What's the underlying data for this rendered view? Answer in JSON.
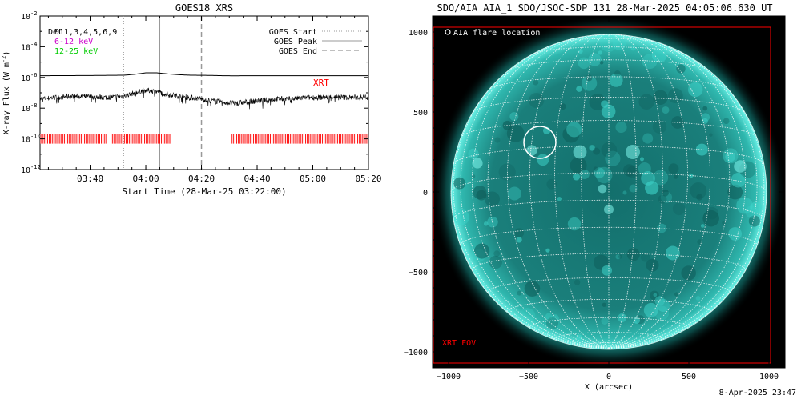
{
  "left_panel": {
    "title": "GOES18 XRS",
    "y_axis_label": "X-ray Flux (W m",
    "y_axis_label_sup": "-2",
    "y_axis_label_end": ")",
    "x_axis_label": "Start Time (28-Mar-25 03:22:00)",
    "det_label": "Det",
    "channels_label": "D11,3,4,5,6,9",
    "band_low": "6-12 keV",
    "band_high": "12-25 keV",
    "band_low_color": "#cc00cc",
    "band_high_color": "#00cc00",
    "xrt_label": "XRT",
    "legend": [
      {
        "label": "GOES Start",
        "style": "dotted"
      },
      {
        "label": "GOES Peak",
        "style": "solid"
      },
      {
        "label": "GOES End",
        "style": "dashed"
      }
    ]
  },
  "right_panel": {
    "title": "SDO/AIA AIA_1 SDO/JSOC-SDP 131 28-Mar-2025 04:05:06.630 UT",
    "legend_label": "AIA flare location",
    "fov_label": "XRT FOV",
    "x_axis_label": "X (arcsec)"
  },
  "timestamp": "8-Apr-2025 23:47",
  "colors": {
    "xrt_marks": "#ff0000",
    "sun_disk": "#1a8a86",
    "sun_bright": "#4ff0e6",
    "fov_box": "#ff0000"
  },
  "chart_data": [
    {
      "type": "line",
      "title": "GOES18 XRS",
      "xlabel": "Start Time (28-Mar-25 03:22:00)",
      "ylabel": "X-ray Flux (W m^-2)",
      "y_scale": "log",
      "x_unit": "minutes after 03:22:00",
      "xlim": [
        0,
        118
      ],
      "ylim": [
        1e-12,
        0.01
      ],
      "x_ticks": [
        18,
        38,
        58,
        78,
        98,
        118
      ],
      "x_tick_labels": [
        "03:40",
        "04:00",
        "04:20",
        "04:40",
        "05:00",
        "05:20"
      ],
      "y_ticks": [
        1e-12,
        1e-10,
        1e-08,
        1e-06,
        0.0001,
        0.01
      ],
      "y_tick_labels": [
        [
          "10",
          "-12"
        ],
        [
          "10",
          "-10"
        ],
        [
          "10",
          "-8"
        ],
        [
          "10",
          "-6"
        ],
        [
          "10",
          "-4"
        ],
        [
          "10",
          "-2"
        ]
      ],
      "legend_position": "top-right",
      "grid": false,
      "series": [
        {
          "name": "6-12 keV",
          "x": [
            0,
            10,
            20,
            30,
            34,
            38,
            42,
            46,
            50,
            54,
            58,
            62,
            66,
            70,
            74,
            78,
            82,
            86,
            90,
            94,
            98,
            102,
            106,
            110,
            114,
            118
          ],
          "y": [
            1.3e-06,
            1.32e-06,
            1.35e-06,
            1.4e-06,
            1.6e-06,
            2e-06,
            2e-06,
            1.7e-06,
            1.5e-06,
            1.4e-06,
            1.38e-06,
            1.35e-06,
            1.3e-06,
            1.28e-06,
            1.3e-06,
            1.3e-06,
            1.3e-06,
            1.3e-06,
            1.3e-06,
            1.3e-06,
            1.3e-06,
            1.3e-06,
            1.3e-06,
            1.3e-06,
            1.3e-06,
            1.3e-06
          ]
        },
        {
          "name": "12-25 keV",
          "x": [
            0,
            6,
            12,
            18,
            24,
            30,
            34,
            38,
            42,
            46,
            50,
            54,
            58,
            62,
            66,
            70,
            74,
            78,
            82,
            86,
            90,
            94,
            98,
            102,
            106,
            110,
            114,
            118
          ],
          "y": [
            4e-08,
            5e-08,
            6e-08,
            5.5e-08,
            5e-08,
            6e-08,
            1e-07,
            1.5e-07,
            1.2e-07,
            8e-08,
            6e-08,
            5e-08,
            4e-08,
            3e-08,
            2.5e-08,
            2e-08,
            2.5e-08,
            3e-08,
            3.5e-08,
            4e-08,
            4e-08,
            4.5e-08,
            5e-08,
            5e-08,
            5.5e-08,
            5e-08,
            5e-08,
            5.5e-08
          ]
        }
      ],
      "events": [
        {
          "label": "GOES Start",
          "x": 30,
          "style": "dotted"
        },
        {
          "label": "GOES Peak",
          "x": 43,
          "style": "solid"
        },
        {
          "label": "GOES End",
          "x": 58,
          "style": "dashed"
        }
      ],
      "xrt_coverage": {
        "label": "XRT",
        "intervals": [
          [
            0,
            24
          ],
          [
            26,
            47
          ],
          [
            69,
            118
          ]
        ],
        "flux_level": 1e-10
      }
    },
    {
      "type": "scatter",
      "title": "SDO/AIA AIA_1 SDO/JSOC-SDP 131 28-Mar-2025 04:05:06.630 UT",
      "xlabel": "X (arcsec)",
      "ylabel": "",
      "xlim": [
        -1100,
        1100
      ],
      "ylim": [
        -1100,
        1100
      ],
      "x_ticks": [
        -1000,
        -500,
        0,
        500,
        1000
      ],
      "x_tick_labels": [
        "−1000",
        "−500",
        "0",
        "500",
        "1000"
      ],
      "y_ticks": [
        -1000,
        -500,
        0,
        500,
        1000
      ],
      "y_tick_labels": [
        "−1000",
        "−500",
        "0",
        "500",
        "1000"
      ],
      "solar_radius_arcsec": 985,
      "grid_spacing_deg": 10,
      "flare_location": {
        "label": "AIA flare location",
        "x": -430,
        "y": 310,
        "radius": 100
      },
      "xrt_fov": {
        "label": "XRT FOV",
        "x": [
          -1095,
          1010
        ],
        "y": [
          -1070,
          1030
        ]
      }
    }
  ]
}
